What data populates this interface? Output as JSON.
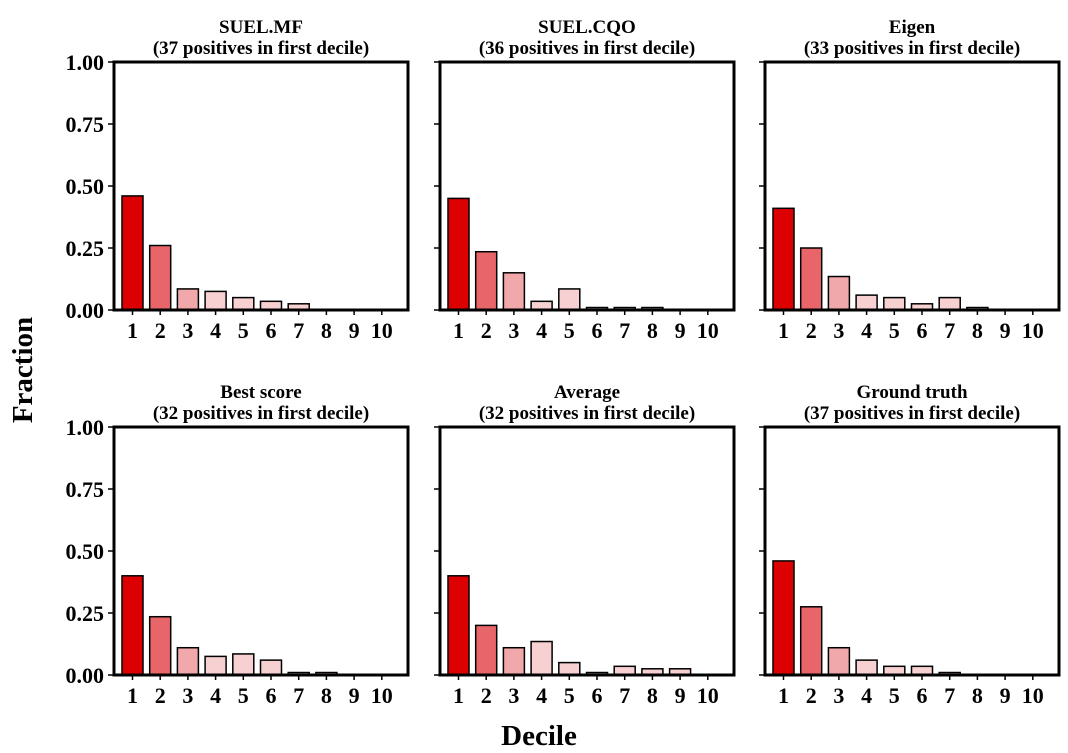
{
  "figure": {
    "xlabel": "Decile",
    "ylabel": "Fraction"
  },
  "chart_data": [
    {
      "type": "bar",
      "title": "SUEL.MF",
      "subtitle": "(37 positives in first decile)",
      "categories": [
        "1",
        "2",
        "3",
        "4",
        "5",
        "6",
        "7",
        "8",
        "9",
        "10"
      ],
      "values": [
        0.46,
        0.26,
        0.085,
        0.075,
        0.05,
        0.035,
        0.025,
        0.0,
        0.0,
        0.0
      ],
      "ylim": [
        0,
        1
      ],
      "yticks": [
        "0.00",
        "0.25",
        "0.50",
        "0.75",
        "1.00"
      ],
      "grid": false
    },
    {
      "type": "bar",
      "title": "SUEL.CQO",
      "subtitle": "(36 positives in first decile)",
      "categories": [
        "1",
        "2",
        "3",
        "4",
        "5",
        "6",
        "7",
        "8",
        "9",
        "10"
      ],
      "values": [
        0.45,
        0.235,
        0.15,
        0.035,
        0.085,
        0.01,
        0.01,
        0.01,
        0.0,
        0.0
      ],
      "ylim": [
        0,
        1
      ],
      "yticks": [
        "0.00",
        "0.25",
        "0.50",
        "0.75",
        "1.00"
      ],
      "grid": false
    },
    {
      "type": "bar",
      "title": "Eigen",
      "subtitle": "(33 positives in first decile)",
      "categories": [
        "1",
        "2",
        "3",
        "4",
        "5",
        "6",
        "7",
        "8",
        "9",
        "10"
      ],
      "values": [
        0.41,
        0.25,
        0.135,
        0.06,
        0.05,
        0.025,
        0.05,
        0.01,
        0.0,
        0.0
      ],
      "ylim": [
        0,
        1
      ],
      "yticks": [
        "0.00",
        "0.25",
        "0.50",
        "0.75",
        "1.00"
      ],
      "grid": false
    },
    {
      "type": "bar",
      "title": "Best score",
      "subtitle": "(32 positives in first decile)",
      "categories": [
        "1",
        "2",
        "3",
        "4",
        "5",
        "6",
        "7",
        "8",
        "9",
        "10"
      ],
      "values": [
        0.4,
        0.235,
        0.11,
        0.075,
        0.085,
        0.06,
        0.01,
        0.01,
        0.0,
        0.0
      ],
      "ylim": [
        0,
        1
      ],
      "yticks": [
        "0.00",
        "0.25",
        "0.50",
        "0.75",
        "1.00"
      ],
      "grid": false
    },
    {
      "type": "bar",
      "title": "Average",
      "subtitle": "(32 positives in first decile)",
      "categories": [
        "1",
        "2",
        "3",
        "4",
        "5",
        "6",
        "7",
        "8",
        "9",
        "10"
      ],
      "values": [
        0.4,
        0.2,
        0.11,
        0.135,
        0.05,
        0.01,
        0.035,
        0.025,
        0.025,
        0.0
      ],
      "ylim": [
        0,
        1
      ],
      "yticks": [
        "0.00",
        "0.25",
        "0.50",
        "0.75",
        "1.00"
      ],
      "grid": false
    },
    {
      "type": "bar",
      "title": "Ground truth",
      "subtitle": "(37 positives in first decile)",
      "categories": [
        "1",
        "2",
        "3",
        "4",
        "5",
        "6",
        "7",
        "8",
        "9",
        "10"
      ],
      "values": [
        0.46,
        0.275,
        0.11,
        0.06,
        0.035,
        0.035,
        0.01,
        0.0,
        0.0,
        0.0
      ],
      "ylim": [
        0,
        1
      ],
      "yticks": [
        "0.00",
        "0.25",
        "0.50",
        "0.75",
        "1.00"
      ],
      "grid": false
    }
  ],
  "colors": {
    "bars": [
      "#dc0000",
      "#e8666a",
      "#f0a8aa",
      "#f7d0d1",
      "#f7d0d1",
      "#f7d0d1",
      "#f7d0d1",
      "#f7d0d1",
      "#f7d0d1",
      "#f7d0d1"
    ],
    "edge": "#000000",
    "background": "#ffffff"
  }
}
